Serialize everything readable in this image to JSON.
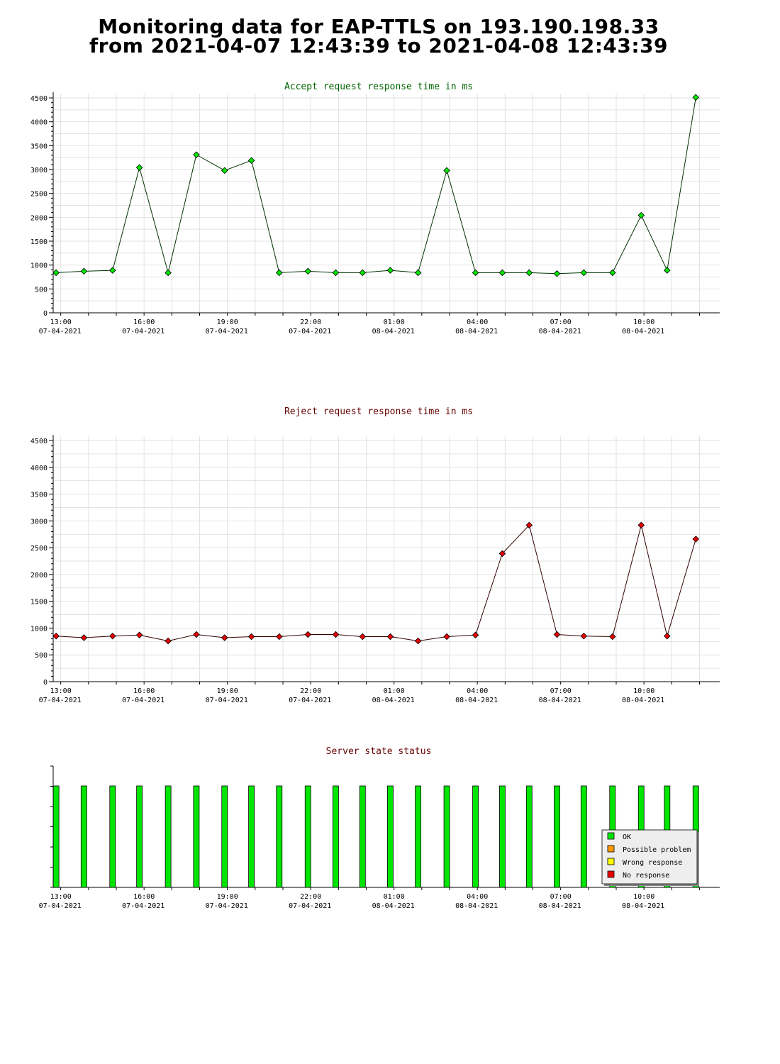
{
  "page": {
    "title_line1": "Monitoring data for EAP-TTLS on 193.190.198.33",
    "title_line2": "from 2021-04-07 12:43:39 to 2021-04-08 12:43:39"
  },
  "x_axis": {
    "start": "2021-04-07 12:43:39",
    "end": "2021-04-08 12:43:39",
    "ticks": [
      {
        "time": "13:00",
        "date": "07-04-2021"
      },
      {
        "time": "16:00",
        "date": "07-04-2021"
      },
      {
        "time": "19:00",
        "date": "07-04-2021"
      },
      {
        "time": "22:00",
        "date": "07-04-2021"
      },
      {
        "time": "01:00",
        "date": "08-04-2021"
      },
      {
        "time": "04:00",
        "date": "08-04-2021"
      },
      {
        "time": "07:00",
        "date": "08-04-2021"
      },
      {
        "time": "10:00",
        "date": "08-04-2021"
      }
    ]
  },
  "chart_data": [
    {
      "type": "line",
      "title": "Accept request response time in ms",
      "title_color": "#006600",
      "line_color": "#003300",
      "marker_color": "#00e600",
      "ylim": [
        0,
        4500
      ],
      "yticks": [
        0,
        500,
        1000,
        1500,
        2000,
        2500,
        3000,
        3500,
        4000,
        4500
      ],
      "grid": true,
      "x": [
        "2021-04-07 12:50",
        "2021-04-07 13:50",
        "2021-04-07 14:52",
        "2021-04-07 15:50",
        "2021-04-07 16:52",
        "2021-04-07 17:53",
        "2021-04-07 18:54",
        "2021-04-07 19:52",
        "2021-04-07 20:52",
        "2021-04-07 21:54",
        "2021-04-07 22:54",
        "2021-04-07 23:52",
        "2021-04-08 00:52",
        "2021-04-08 01:52",
        "2021-04-08 02:54",
        "2021-04-08 03:56",
        "2021-04-08 04:54",
        "2021-04-08 05:52",
        "2021-04-08 06:52",
        "2021-04-08 07:50",
        "2021-04-08 08:52",
        "2021-04-08 09:54",
        "2021-04-08 10:50",
        "2021-04-08 11:52"
      ],
      "values": [
        840,
        870,
        890,
        3040,
        840,
        3310,
        2980,
        3190,
        840,
        870,
        840,
        840,
        890,
        840,
        2980,
        840,
        840,
        840,
        820,
        840,
        840,
        2040,
        890,
        4510
      ]
    },
    {
      "type": "line",
      "title": "Reject request response time in ms",
      "title_color": "#660000",
      "line_color": "#330000",
      "marker_color": "#e60000",
      "ylim": [
        0,
        4500
      ],
      "yticks": [
        0,
        500,
        1000,
        1500,
        2000,
        2500,
        3000,
        3500,
        4000,
        4500
      ],
      "grid": true,
      "x": [
        "2021-04-07 12:50",
        "2021-04-07 13:50",
        "2021-04-07 14:52",
        "2021-04-07 15:50",
        "2021-04-07 16:52",
        "2021-04-07 17:53",
        "2021-04-07 18:54",
        "2021-04-07 19:52",
        "2021-04-07 20:52",
        "2021-04-07 21:54",
        "2021-04-07 22:54",
        "2021-04-07 23:52",
        "2021-04-08 00:52",
        "2021-04-08 01:52",
        "2021-04-08 02:54",
        "2021-04-08 03:56",
        "2021-04-08 04:54",
        "2021-04-08 05:52",
        "2021-04-08 06:52",
        "2021-04-08 07:50",
        "2021-04-08 08:52",
        "2021-04-08 09:54",
        "2021-04-08 10:50",
        "2021-04-08 11:52"
      ],
      "values": [
        850,
        820,
        850,
        870,
        760,
        880,
        820,
        840,
        840,
        880,
        880,
        840,
        840,
        760,
        840,
        870,
        2390,
        2920,
        880,
        850,
        840,
        2920,
        850,
        2660
      ]
    },
    {
      "type": "bar",
      "title": "Server state status",
      "title_color": "#660000",
      "legend_position": "bottom-right",
      "legend": [
        {
          "label": "OK",
          "color": "#00e600"
        },
        {
          "label": "Possible problem",
          "color": "#ff9900"
        },
        {
          "label": "Wrong response",
          "color": "#ffff00"
        },
        {
          "label": "No response",
          "color": "#e60000"
        }
      ],
      "x": [
        "2021-04-07 12:50",
        "2021-04-07 13:50",
        "2021-04-07 14:52",
        "2021-04-07 15:50",
        "2021-04-07 16:52",
        "2021-04-07 17:53",
        "2021-04-07 18:54",
        "2021-04-07 19:52",
        "2021-04-07 20:52",
        "2021-04-07 21:54",
        "2021-04-07 22:54",
        "2021-04-07 23:52",
        "2021-04-08 00:52",
        "2021-04-08 01:52",
        "2021-04-08 02:54",
        "2021-04-08 03:56",
        "2021-04-08 04:54",
        "2021-04-08 05:52",
        "2021-04-08 06:52",
        "2021-04-08 07:50",
        "2021-04-08 08:52",
        "2021-04-08 09:54",
        "2021-04-08 10:50",
        "2021-04-08 11:52"
      ],
      "states": [
        "OK",
        "OK",
        "OK",
        "OK",
        "OK",
        "OK",
        "OK",
        "OK",
        "OK",
        "OK",
        "OK",
        "OK",
        "OK",
        "OK",
        "OK",
        "OK",
        "OK",
        "OK",
        "OK",
        "OK",
        "OK",
        "OK",
        "OK",
        "OK"
      ]
    }
  ]
}
